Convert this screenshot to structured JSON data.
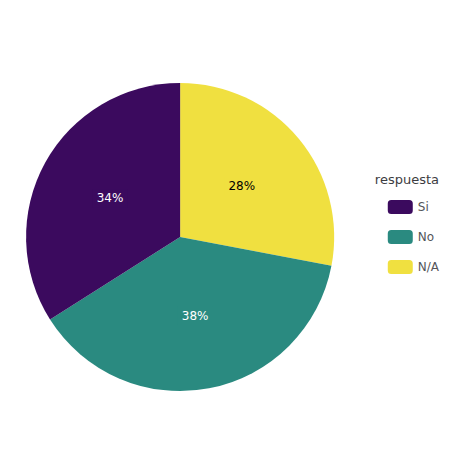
{
  "chart_data": {
    "type": "pie",
    "categories": [
      "N/A",
      "No",
      "Si"
    ],
    "values": [
      28,
      38,
      34
    ],
    "colors": [
      "#F0E040",
      "#2A8A80",
      "#3B0A5E"
    ],
    "data_labels": true,
    "value_labels": [
      "28%",
      "38%",
      "34%"
    ],
    "legend": "right",
    "legend_title": "respuesta",
    "legend_entries": [
      "Si",
      "No",
      "N/A"
    ]
  }
}
